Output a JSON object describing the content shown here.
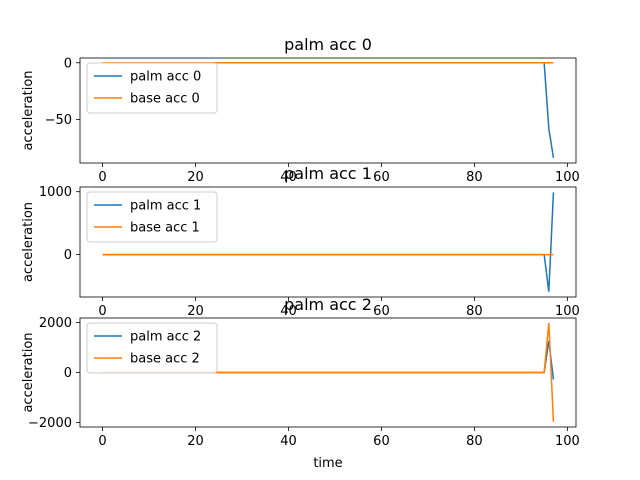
{
  "chart_data": [
    {
      "type": "line",
      "title": "palm acc 0",
      "xlabel": "",
      "ylabel": "acceleration",
      "xlim": [
        -4.85,
        101.85
      ],
      "ylim": [
        -88.5,
        4.2
      ],
      "xticks": [
        0,
        20,
        40,
        60,
        80,
        100
      ],
      "yticks": [
        0,
        -50
      ],
      "grid": false,
      "legend": "upper-left",
      "series": [
        {
          "name": "palm acc 0",
          "color": "#1f77b4",
          "x": [
            0,
            95,
            96,
            97
          ],
          "y": [
            0,
            0,
            -58,
            -84
          ]
        },
        {
          "name": "base acc 0",
          "color": "#ff7f0e",
          "x": [
            0,
            97
          ],
          "y": [
            0,
            0
          ]
        }
      ]
    },
    {
      "type": "line",
      "title": "palm acc 1",
      "xlabel": "",
      "ylabel": "acceleration",
      "xlim": [
        -4.85,
        101.85
      ],
      "ylim": [
        -675,
        1075
      ],
      "xticks": [
        0,
        20,
        40,
        60,
        80,
        100
      ],
      "yticks": [
        1000,
        0
      ],
      "grid": false,
      "legend": "upper-left",
      "series": [
        {
          "name": "palm acc 1",
          "color": "#1f77b4",
          "x": [
            0,
            95,
            96,
            97
          ],
          "y": [
            0,
            0,
            -590,
            990
          ]
        },
        {
          "name": "base acc 1",
          "color": "#ff7f0e",
          "x": [
            0,
            97
          ],
          "y": [
            0,
            0
          ]
        }
      ]
    },
    {
      "type": "line",
      "title": "palm acc 2",
      "xlabel": "time",
      "ylabel": "acceleration",
      "xlim": [
        -4.85,
        101.85
      ],
      "ylim": [
        -2180,
        2180
      ],
      "xticks": [
        0,
        20,
        40,
        60,
        80,
        100
      ],
      "yticks": [
        2000,
        0,
        -2000
      ],
      "grid": false,
      "legend": "upper-left",
      "series": [
        {
          "name": "palm acc 2",
          "color": "#1f77b4",
          "x": [
            0,
            95,
            96,
            97
          ],
          "y": [
            0,
            0,
            1260,
            -280
          ]
        },
        {
          "name": "base acc 2",
          "color": "#ff7f0e",
          "x": [
            0,
            95,
            96,
            97
          ],
          "y": [
            0,
            0,
            1980,
            -1980
          ]
        }
      ]
    }
  ]
}
